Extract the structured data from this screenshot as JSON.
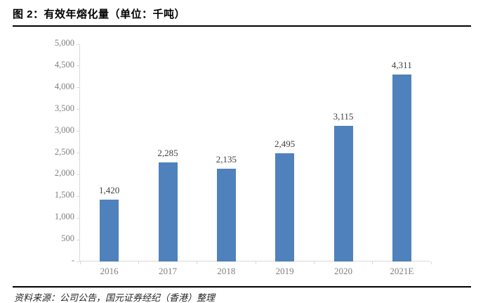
{
  "title": "图 2：有效年熔化量（单位：千吨）",
  "source": "资料来源：公司公告，国元证券经纪（香港）整理",
  "colors": {
    "bar": "#4f81bd",
    "axis": "#d9d9d9",
    "tick_label": "#7f7f7f",
    "data_label": "#404040",
    "rule": "#000000"
  },
  "chart_data": {
    "type": "bar",
    "title": "有效年熔化量（单位：千吨）",
    "categories": [
      "2016",
      "2017",
      "2018",
      "2019",
      "2020",
      "2021E"
    ],
    "values": [
      1420,
      2285,
      2135,
      2495,
      3115,
      4311
    ],
    "value_labels": [
      "1,420",
      "2,285",
      "2,135",
      "2,495",
      "3,115",
      "4,311"
    ],
    "xlabel": "",
    "ylabel": "",
    "ylim": [
      0,
      5000
    ],
    "y_tick_step": 500,
    "y_tick_labels": [
      "-",
      "500",
      "1,000",
      "1,500",
      "2,000",
      "2,500",
      "3,000",
      "3,500",
      "4,000",
      "4,500",
      "5,000"
    ],
    "grid": false,
    "legend_position": "none",
    "bar_color": "#4f81bd"
  }
}
